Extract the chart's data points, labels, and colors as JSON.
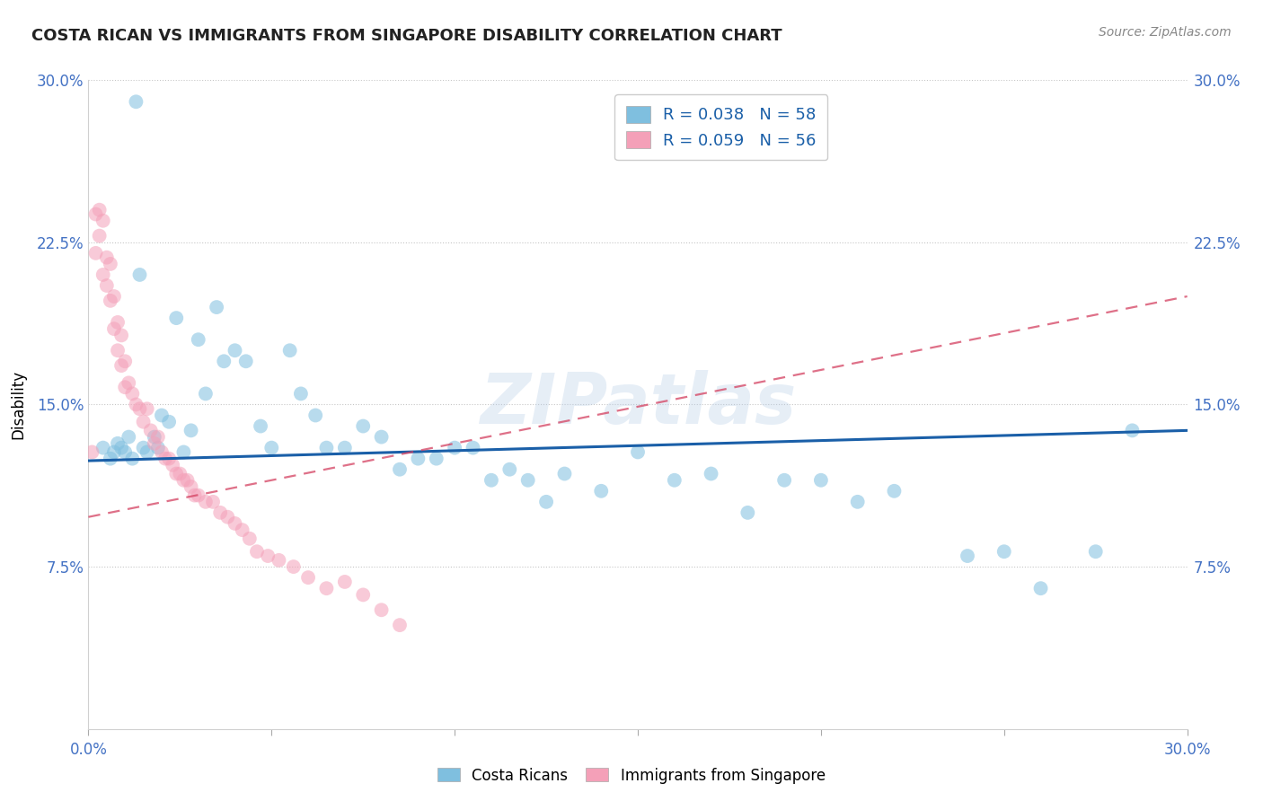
{
  "title": "COSTA RICAN VS IMMIGRANTS FROM SINGAPORE DISABILITY CORRELATION CHART",
  "source": "Source: ZipAtlas.com",
  "ylabel": "Disability",
  "xlim": [
    0.0,
    0.3
  ],
  "ylim": [
    0.0,
    0.3
  ],
  "xticklabels": [
    "0.0%",
    "",
    "",
    "",
    "",
    "",
    "30.0%"
  ],
  "yticklabels_left": [
    "7.5%",
    "15.0%",
    "22.5%",
    "30.0%"
  ],
  "yticklabels_right": [
    "7.5%",
    "15.0%",
    "22.5%",
    "30.0%"
  ],
  "legend1_label": "R = 0.038   N = 58",
  "legend2_label": "R = 0.059   N = 56",
  "legend_bottom1": "Costa Ricans",
  "legend_bottom2": "Immigrants from Singapore",
  "blue_color": "#7fbfdf",
  "pink_color": "#f4a0b8",
  "blue_line_color": "#1a5fa8",
  "pink_line_color": "#d44060",
  "watermark": "ZIPatlas",
  "blue_x": [
    0.004,
    0.006,
    0.007,
    0.008,
    0.009,
    0.01,
    0.011,
    0.012,
    0.013,
    0.014,
    0.015,
    0.016,
    0.018,
    0.019,
    0.02,
    0.022,
    0.024,
    0.026,
    0.028,
    0.03,
    0.032,
    0.035,
    0.037,
    0.04,
    0.043,
    0.047,
    0.05,
    0.055,
    0.058,
    0.062,
    0.065,
    0.07,
    0.075,
    0.08,
    0.085,
    0.09,
    0.095,
    0.1,
    0.105,
    0.11,
    0.115,
    0.12,
    0.125,
    0.13,
    0.14,
    0.15,
    0.16,
    0.17,
    0.18,
    0.19,
    0.2,
    0.21,
    0.22,
    0.24,
    0.25,
    0.26,
    0.275,
    0.285
  ],
  "blue_y": [
    0.13,
    0.125,
    0.128,
    0.132,
    0.13,
    0.128,
    0.135,
    0.125,
    0.29,
    0.21,
    0.13,
    0.128,
    0.135,
    0.13,
    0.145,
    0.142,
    0.19,
    0.128,
    0.138,
    0.18,
    0.155,
    0.195,
    0.17,
    0.175,
    0.17,
    0.14,
    0.13,
    0.175,
    0.155,
    0.145,
    0.13,
    0.13,
    0.14,
    0.135,
    0.12,
    0.125,
    0.125,
    0.13,
    0.13,
    0.115,
    0.12,
    0.115,
    0.105,
    0.118,
    0.11,
    0.128,
    0.115,
    0.118,
    0.1,
    0.115,
    0.115,
    0.105,
    0.11,
    0.08,
    0.082,
    0.065,
    0.082,
    0.138
  ],
  "pink_x": [
    0.001,
    0.002,
    0.002,
    0.003,
    0.003,
    0.004,
    0.004,
    0.005,
    0.005,
    0.006,
    0.006,
    0.007,
    0.007,
    0.008,
    0.008,
    0.009,
    0.009,
    0.01,
    0.01,
    0.011,
    0.012,
    0.013,
    0.014,
    0.015,
    0.016,
    0.017,
    0.018,
    0.019,
    0.02,
    0.021,
    0.022,
    0.023,
    0.024,
    0.025,
    0.026,
    0.027,
    0.028,
    0.029,
    0.03,
    0.032,
    0.034,
    0.036,
    0.038,
    0.04,
    0.042,
    0.044,
    0.046,
    0.049,
    0.052,
    0.056,
    0.06,
    0.065,
    0.07,
    0.075,
    0.08,
    0.085
  ],
  "pink_y": [
    0.128,
    0.238,
    0.22,
    0.24,
    0.228,
    0.235,
    0.21,
    0.218,
    0.205,
    0.215,
    0.198,
    0.2,
    0.185,
    0.188,
    0.175,
    0.182,
    0.168,
    0.17,
    0.158,
    0.16,
    0.155,
    0.15,
    0.148,
    0.142,
    0.148,
    0.138,
    0.132,
    0.135,
    0.128,
    0.125,
    0.125,
    0.122,
    0.118,
    0.118,
    0.115,
    0.115,
    0.112,
    0.108,
    0.108,
    0.105,
    0.105,
    0.1,
    0.098,
    0.095,
    0.092,
    0.088,
    0.082,
    0.08,
    0.078,
    0.075,
    0.07,
    0.065,
    0.068,
    0.062,
    0.055,
    0.048
  ],
  "blue_R": 0.038,
  "blue_N": 58,
  "pink_R": 0.059,
  "pink_N": 56,
  "blue_line_x0": 0.0,
  "blue_line_y0": 0.124,
  "blue_line_x1": 0.3,
  "blue_line_y1": 0.138,
  "pink_line_x0": 0.0,
  "pink_line_y0": 0.098,
  "pink_line_x1": 0.3,
  "pink_line_y1": 0.2
}
